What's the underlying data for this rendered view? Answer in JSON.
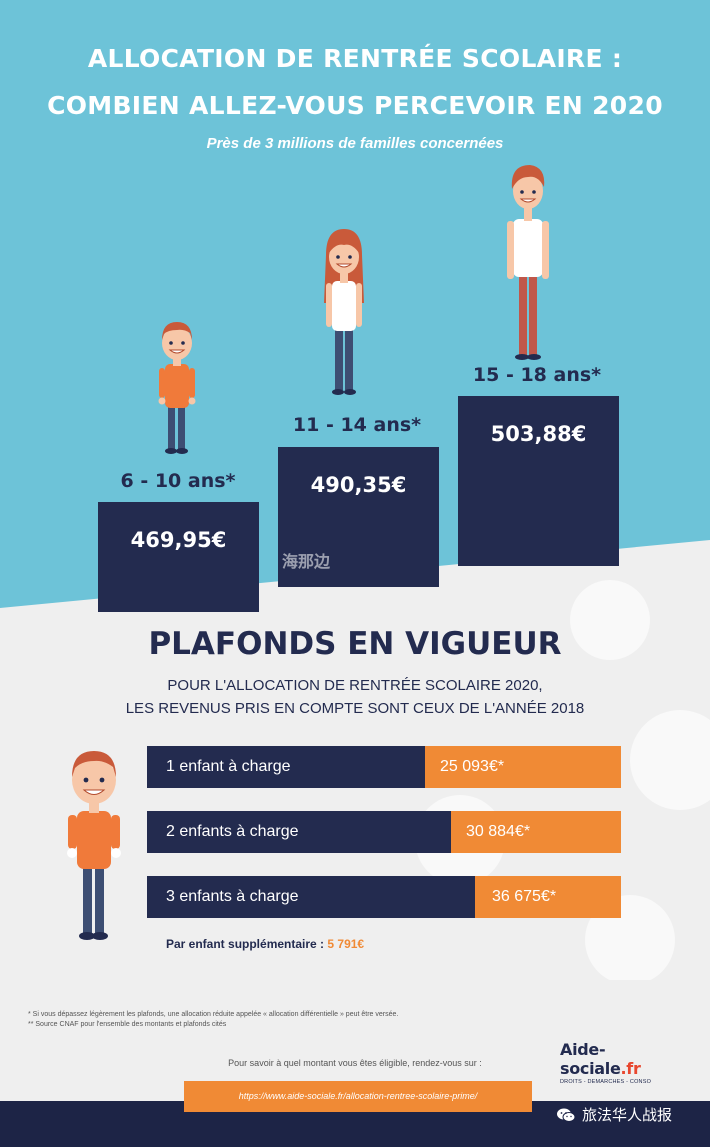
{
  "header": {
    "title_line1": "ALLOCATION DE RENTRÉE SCOLAIRE :",
    "title_line2": "COMBIEN ALLEZ-VOUS PERCEVOIR EN 2020",
    "subtitle": "Près de 3 millions de familles concernées"
  },
  "age_groups": [
    {
      "age": "6 - 10 ans*",
      "amount": "469,95€"
    },
    {
      "age": "11 - 14 ans*",
      "amount": "490,35€"
    },
    {
      "age": "15 - 18 ans*",
      "amount": "503,88€"
    }
  ],
  "watermark": "海那边",
  "plafonds": {
    "title": "PLAFONDS EN VIGUEUR",
    "sub_line1": "POUR L'ALLOCATION DE RENTRÉE SCOLAIRE 2020,",
    "sub_line2": "LES REVENUS PRIS EN COMPTE SONT CEUX DE L'ANNÉE 2018",
    "rows": [
      {
        "label": "1 enfant à charge",
        "value": "25 093€*"
      },
      {
        "label": "2 enfants à charge",
        "value": "30 884€*"
      },
      {
        "label": "3 enfants à charge",
        "value": "36 675€*"
      }
    ],
    "extra_label": "Par enfant supplémentaire :",
    "extra_value": "5 791€"
  },
  "footnotes": {
    "line1": "* Si vous dépassez légèrement les plafonds, une allocation réduite appelée « allocation différentielle » peut être versée.",
    "line2": "** Source CNAF pour l'ensemble des montants et plafonds cités"
  },
  "logo": {
    "main": "Aide-sociale",
    "suffix": ".fr",
    "tagline": "DROITS - DEMARCHES - CONSO"
  },
  "cta": {
    "text": "Pour savoir à quel montant vous êtes éligible, rendez-vous sur :",
    "url": "https://www.aide-sociale.fr/allocation-rentree-scolaire-prime/"
  },
  "wechat": {
    "account": "旅法华人战报",
    "icon": "wechat-icon"
  },
  "colors": {
    "sky_blue": "#6dc3d8",
    "navy": "#232b4f",
    "orange": "#f08a35",
    "background": "#efefef"
  }
}
